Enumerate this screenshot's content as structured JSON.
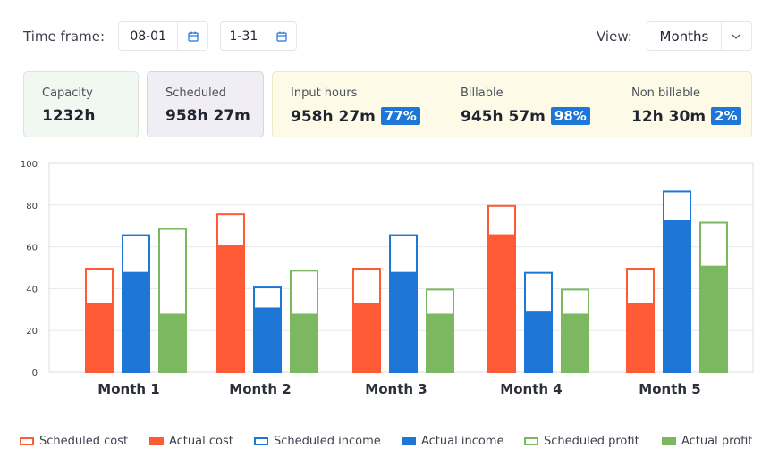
{
  "toolbar": {
    "time_frame_label": "Time frame:",
    "start_date": "08-01",
    "end_date": "1-31",
    "calendar_icon": "calendar-icon",
    "view_label": "View:",
    "view_value": "Months",
    "chevron_icon": "chevron-down-icon"
  },
  "summary": {
    "capacity": {
      "label": "Capacity",
      "value": "1232h"
    },
    "scheduled": {
      "label": "Scheduled",
      "value": "958h 27m"
    },
    "input_hours": {
      "label": "Input hours",
      "value": "958h 27m",
      "badge": "77%"
    },
    "billable": {
      "label": "Billable",
      "value": "945h 57m",
      "badge": "98%"
    },
    "non_billable": {
      "label": "Non billable",
      "value": "12h 30m",
      "badge": "2%"
    }
  },
  "colors": {
    "cost": "#ff5a36",
    "income": "#1e76d6",
    "profit": "#7cb860",
    "capacity_bg": "#f1f7f1",
    "scheduled_bg": "#f0edf4",
    "hours_bg": "#fdfbe8"
  },
  "chart_data": {
    "type": "bar",
    "categories": [
      "Month 1",
      "Month 2",
      "Month 3",
      "Month 4",
      "Month 5"
    ],
    "ylim": [
      0,
      100
    ],
    "yticks": [
      0,
      20,
      40,
      60,
      80,
      100
    ],
    "series": [
      {
        "name": "Scheduled cost",
        "group": "cost",
        "style": "outline",
        "values": [
          50,
          76,
          50,
          80,
          50
        ]
      },
      {
        "name": "Actual cost",
        "group": "cost",
        "style": "filled",
        "values": [
          33,
          61,
          33,
          66,
          33
        ]
      },
      {
        "name": "Scheduled income",
        "group": "income",
        "style": "outline",
        "values": [
          66,
          41,
          66,
          48,
          87
        ]
      },
      {
        "name": "Actual income",
        "group": "income",
        "style": "filled",
        "values": [
          48,
          31,
          48,
          29,
          73
        ]
      },
      {
        "name": "Scheduled profit",
        "group": "profit",
        "style": "outline",
        "values": [
          69,
          49,
          40,
          40,
          72
        ]
      },
      {
        "name": "Actual profit",
        "group": "profit",
        "style": "filled",
        "values": [
          28,
          28,
          28,
          28,
          51
        ]
      }
    ]
  }
}
